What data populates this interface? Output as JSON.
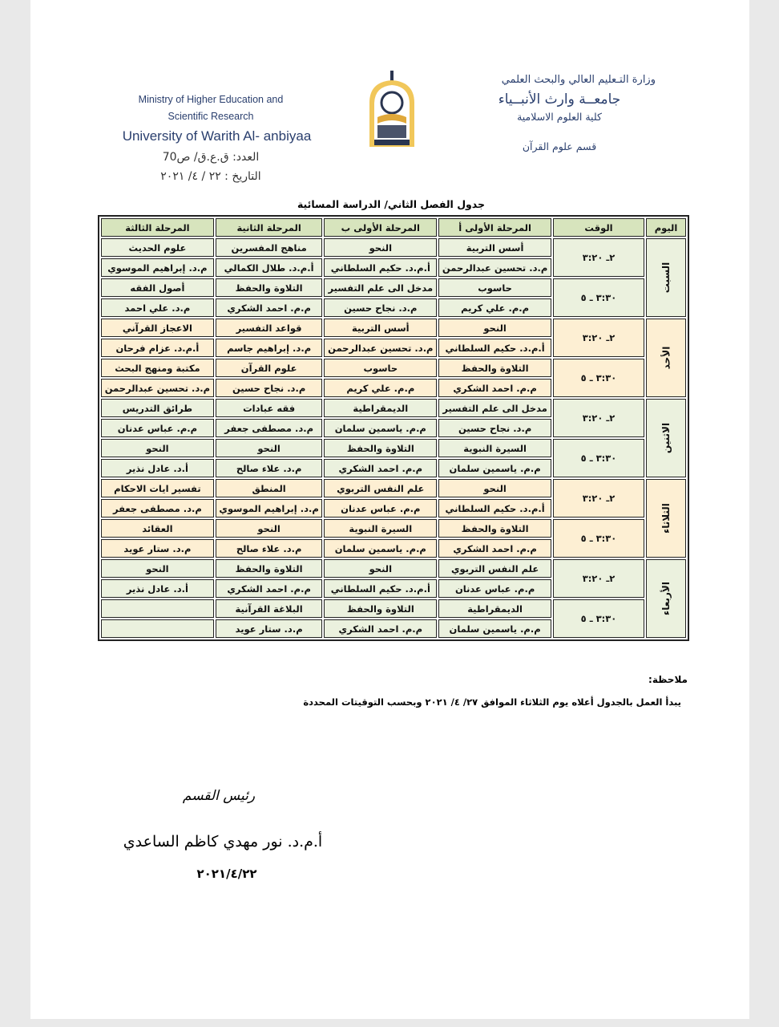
{
  "header": {
    "en": {
      "ministry_line1": "Ministry of Higher Education and",
      "ministry_line2": "Scientific Research",
      "university": "University of Warith Al- anbiyaa"
    },
    "ar": {
      "ministry": "وزارة التـعليم العالي والبحث العلمي",
      "university": "جامعــة وارث الأنبــياء",
      "college": "كلية العلوم الاسلامية",
      "department": "قسم علوم القرآن"
    },
    "ref_number": "العدد: ق.ع.ق/ ص70",
    "date": "التاريخ : ٢٢ / ٤/ ٢٠٢١",
    "logo_text": "جامعة وارث الأنبياء"
  },
  "title": "جدول الفصل الثاني/ الدراسة المسائية",
  "table": {
    "columns": [
      "اليوم",
      "الوقت",
      "المرحلة الأولى أ",
      "المرحلة الأولى ب",
      "المرحلة الثانية",
      "المرحلة الثالثة"
    ],
    "days": [
      {
        "day": "السبت",
        "color": "#ebf1de",
        "slots": [
          {
            "time": "٢ـ ٣:٢٠",
            "subjects": [
              "أسس التربية",
              "النحو",
              "مناهج المفسرين",
              "علوم الحديث"
            ],
            "teachers": [
              "م.د. تحسين عبدالرحمن",
              "أ.م.د. حكيم السلطاني",
              "أ.م.د. طلال الكمالي",
              "م.د. إبراهيم الموسوي"
            ]
          },
          {
            "time": "٣:٣٠ ـ ٥",
            "subjects": [
              "حاسوب",
              "مدخل الى علم التفسير",
              "التلاوة والحفظ",
              "أصول الفقه"
            ],
            "teachers": [
              "م.م. علي كريم",
              "م.د. نجاح حسين",
              "م.م. احمد الشكري",
              "م.د. علي احمد"
            ]
          }
        ]
      },
      {
        "day": "الأحد",
        "color": "#fdefd3",
        "slots": [
          {
            "time": "٢ـ ٣:٢٠",
            "subjects": [
              "النحو",
              "أسس التربية",
              "قواعد التفسير",
              "الاعجاز القرآني"
            ],
            "teachers": [
              "أ.م.د. حكيم السلطاني",
              "م.د. تحسين عبدالرحمن",
              "م.د. إبراهيم جاسم",
              "أ.م.د. عزام فرحان"
            ]
          },
          {
            "time": "٣:٣٠ ـ ٥",
            "subjects": [
              "التلاوة والحفظ",
              "حاسوب",
              "علوم القرآن",
              "مكتبة ومنهج البحث"
            ],
            "teachers": [
              "م.م. احمد الشكري",
              "م.م. علي كريم",
              "م.د. نجاح حسين",
              "م.د. تحسين عبدالرحمن"
            ]
          }
        ]
      },
      {
        "day": "الاثنين",
        "color": "#ebf1de",
        "slots": [
          {
            "time": "٢ـ ٣:٢٠",
            "subjects": [
              "مدخل الى علم التفسير",
              "الديمقراطية",
              "فقه عبادات",
              "طرائق التدريس"
            ],
            "teachers": [
              "م.د. نجاح حسين",
              "م.م. ياسمين سلمان",
              "م.د. مصطفى جعفر",
              "م.م. عباس عدنان"
            ]
          },
          {
            "time": "٣:٣٠ ـ ٥",
            "subjects": [
              "السيرة النبوية",
              "التلاوة والحفظ",
              "النحو",
              "النحو"
            ],
            "teachers": [
              "م.م. ياسمين سلمان",
              "م.م. احمد الشكري",
              "م.د. علاء صالح",
              "أ.د. عادل نذير"
            ]
          }
        ]
      },
      {
        "day": "الثلاثاء",
        "color": "#fdefd3",
        "slots": [
          {
            "time": "٢ـ ٣:٢٠",
            "subjects": [
              "النحو",
              "علم النفس التربوي",
              "المنطق",
              "تفسير ايات الاحكام"
            ],
            "teachers": [
              "أ.م.د. حكيم السلطاني",
              "م.م. عباس عدنان",
              "م.د. إبراهيم الموسوي",
              "م.د. مصطفى جعفر"
            ]
          },
          {
            "time": "٣:٣٠ ـ ٥",
            "subjects": [
              "التلاوة والحفظ",
              "السيرة النبوية",
              "النحو",
              "العقائد"
            ],
            "teachers": [
              "م.م. احمد الشكري",
              "م.م. ياسمين سلمان",
              "م.د. علاء صالح",
              "م.د. ستار عويد"
            ]
          }
        ]
      },
      {
        "day": "الأربعاء",
        "color": "#ebf1de",
        "slots": [
          {
            "time": "٢ـ ٣:٢٠",
            "subjects": [
              "علم النفس التربوي",
              "النحو",
              "التلاوة والحفظ",
              "النحو"
            ],
            "teachers": [
              "م.م. عباس عدنان",
              "أ.م.د. حكيم السلطاني",
              "م.م. احمد الشكري",
              "أ.د. عادل نذير"
            ]
          },
          {
            "time": "٣:٣٠ ـ ٥",
            "subjects": [
              "الديمقراطية",
              "التلاوة والحفظ",
              "البلاغة القرآنية",
              ""
            ],
            "teachers": [
              "م.م. ياسمين سلمان",
              "م.م. احمد الشكري",
              "م.د. ستار عويد",
              ""
            ]
          }
        ]
      }
    ]
  },
  "notes": {
    "label": "ملاحظة:",
    "text": "يبدأ العمل بالجدول أعلاه يوم الثلاثاء الموافق ٢٧/ ٤/ ٢٠٢١ وبحسب التوقيتات المحددة"
  },
  "signature": {
    "title": "رئيس القسم",
    "name": "أ.م.د. نور مهدي كاظم الساعدي",
    "date": "٢٠٢١/٤/٢٢"
  }
}
